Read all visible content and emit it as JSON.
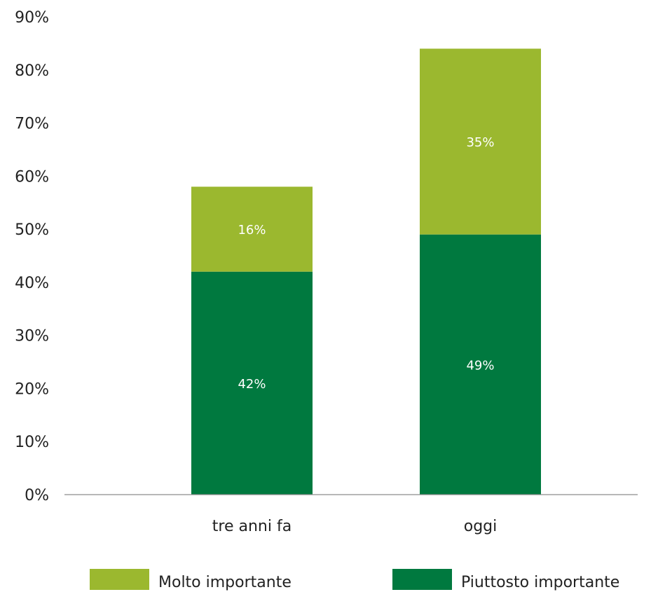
{
  "chart_data": {
    "type": "bar",
    "stacked": true,
    "categories": [
      "tre anni fa",
      "oggi"
    ],
    "series": [
      {
        "name": "Piuttosto importante",
        "values": [
          42,
          49
        ],
        "labels": [
          "42%",
          "49%"
        ],
        "color": "#00793f"
      },
      {
        "name": "Molto importante",
        "values": [
          16,
          35
        ],
        "labels": [
          "16%",
          "35%"
        ],
        "color": "#9bb82f"
      }
    ],
    "ylim": [
      0,
      90
    ],
    "yticks": [
      0,
      10,
      20,
      30,
      40,
      50,
      60,
      70,
      80,
      90
    ],
    "ytick_labels": [
      "0%",
      "10%",
      "20%",
      "30%",
      "40%",
      "50%",
      "60%",
      "70%",
      "80%",
      "90%"
    ],
    "grid": false,
    "legend_position": "bottom",
    "legend_order": [
      "Molto importante",
      "Piuttosto importante"
    ],
    "axis_color": "#8c8c8c"
  }
}
